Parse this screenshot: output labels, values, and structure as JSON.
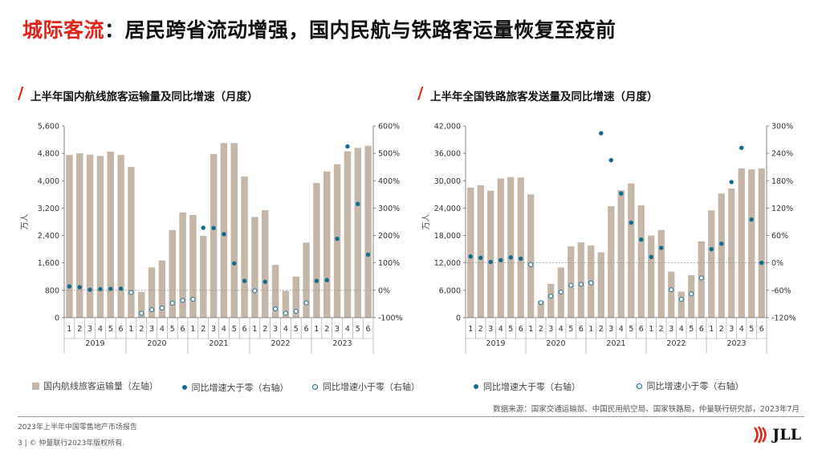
{
  "header": {
    "title_accent": "城际客流",
    "title_rest": "：居民跨省流动增强，国内民航与铁路客运量恢复至疫前"
  },
  "charts": {
    "left_title": "上半年国内航线旅客运输量及同比增速（月度）",
    "right_title": "上半年全国铁路旅客发送量及同比增速（月度）"
  },
  "chart_data": [
    {
      "type": "bar",
      "title": "上半年国内航线旅客运输量及同比增速（月度）",
      "ylabel": "万人",
      "ylim": [
        0,
        5600
      ],
      "y_ticks": [
        "0",
        "800",
        "1,600",
        "2,400",
        "3,200",
        "4,000",
        "4,800",
        "5,600"
      ],
      "y2lim": [
        -100,
        600
      ],
      "y2_ticks": [
        "-100%",
        "0%",
        "100%",
        "200%",
        "300%",
        "400%",
        "500%",
        "600%"
      ],
      "years": [
        "2019",
        "2020",
        "2021",
        "2022",
        "2023"
      ],
      "months": [
        "1",
        "2",
        "3",
        "4",
        "5",
        "6"
      ],
      "series": [
        {
          "name": "国内航线旅客运输量（左轴）",
          "kind": "bar",
          "values": [
            4750,
            4800,
            4760,
            4720,
            4850,
            4750,
            4400,
            750,
            1470,
            1670,
            2560,
            3070,
            3000,
            2390,
            4780,
            5100,
            5100,
            4120,
            2940,
            3140,
            1540,
            780,
            1200,
            2190,
            3930,
            4270,
            4480,
            4860,
            4960,
            5020
          ]
        },
        {
          "name": "同比增速大于零（右轴）",
          "kind": "dot",
          "values": [
            14,
            11,
            2,
            4,
            5,
            6,
            null,
            null,
            null,
            null,
            null,
            null,
            null,
            228,
            227,
            205,
            98,
            34,
            null,
            31,
            null,
            null,
            null,
            null,
            34,
            37,
            188,
            525,
            315,
            130
          ]
        },
        {
          "name": "同比增速小于零（右轴）",
          "kind": "ring",
          "values": [
            null,
            null,
            null,
            null,
            null,
            null,
            -8,
            -84,
            -71,
            -65,
            -47,
            -37,
            -33,
            null,
            null,
            null,
            null,
            null,
            -2,
            null,
            -68,
            -84,
            -77,
            -46,
            null,
            null,
            null,
            null,
            null,
            null
          ]
        }
      ]
    },
    {
      "type": "bar",
      "title": "上半年全国铁路旅客发送量及同比增速（月度）",
      "ylabel": "万人",
      "ylim": [
        0,
        42000
      ],
      "y_ticks": [
        "0",
        "6,000",
        "12,000",
        "18,000",
        "24,000",
        "30,000",
        "36,000",
        "42,000"
      ],
      "y2lim": [
        -120,
        300
      ],
      "y2_ticks": [
        "-120%",
        "-60%",
        "0%",
        "60%",
        "120%",
        "180%",
        "240%",
        "300%"
      ],
      "years": [
        "2019",
        "2020",
        "2021",
        "2022",
        "2023"
      ],
      "months": [
        "1",
        "2",
        "3",
        "4",
        "5",
        "6"
      ],
      "series": [
        {
          "name": "国内航线旅客运输量（左轴）",
          "kind": "bar",
          "values": [
            28500,
            29000,
            27800,
            30500,
            30800,
            30700,
            27000,
            3700,
            7400,
            11000,
            15600,
            16500,
            15800,
            14300,
            24400,
            27900,
            29400,
            24600,
            18000,
            19200,
            10100,
            5700,
            9300,
            16700,
            23500,
            27200,
            28300,
            32700,
            32500,
            32700
          ]
        },
        {
          "name": "同比增速大于零（右轴）",
          "kind": "dot",
          "values": [
            14,
            11,
            2,
            6,
            12,
            9,
            null,
            null,
            null,
            null,
            null,
            null,
            null,
            284,
            225,
            152,
            88,
            51,
            13,
            33,
            null,
            null,
            null,
            null,
            30,
            42,
            177,
            252,
            95,
            0
          ]
        },
        {
          "name": "同比增速小于零（右轴）",
          "kind": "ring",
          "values": [
            null,
            null,
            null,
            null,
            null,
            null,
            -4,
            -87,
            -73,
            -64,
            -49,
            -47,
            -44,
            null,
            null,
            null,
            null,
            null,
            null,
            null,
            -59,
            -80,
            -68,
            -33,
            null,
            null,
            null,
            null,
            null,
            null
          ]
        }
      ]
    }
  ],
  "legend": {
    "left": [
      "国内航线旅客运输量（左轴）",
      "同比增速大于零（右轴）",
      "同比增速小于零（右轴）"
    ],
    "right": [
      "同比增速大于零（右轴）",
      "同比增速小于零（右轴）"
    ]
  },
  "colors": {
    "accent": "#e2231a",
    "bar": "#c5b6a8",
    "dot": "#0e6c8f"
  },
  "source": "数据来源：国家交通运输部、中国民用航空局、国家铁路局，仲量联行研究部，2023年7月",
  "footer": {
    "report": "2023年上半年中国零售地产市场报告",
    "copyright": "3 | © 仲量联行2023年版权所有.",
    "logo_text": "JLL"
  }
}
